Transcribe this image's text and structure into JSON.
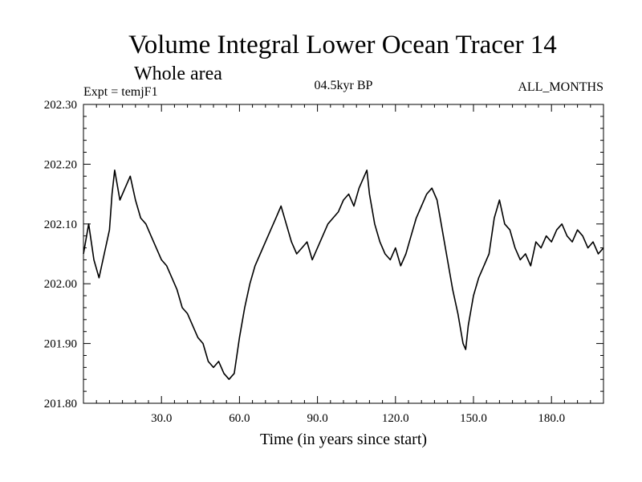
{
  "chart_data": {
    "type": "line",
    "title": "Volume Integral Lower Ocean Tracer 14",
    "subtitle": "Whole area",
    "experiment_label": "Expt = temjF1",
    "period_label": "04.5kyr BP",
    "months_label": "ALL_MONTHS",
    "xlabel": "Time (in years since start)",
    "ylabel": "",
    "xlim": [
      0,
      200
    ],
    "ylim": [
      201.8,
      202.3
    ],
    "x_ticks": [
      30,
      60,
      90,
      120,
      150,
      180
    ],
    "x_tick_labels": [
      "30.0",
      "60.0",
      "90.0",
      "120.0",
      "150.0",
      "180.0"
    ],
    "y_ticks": [
      201.8,
      201.9,
      202.0,
      202.1,
      202.2,
      202.3
    ],
    "y_tick_labels": [
      "201.80",
      "201.90",
      "202.00",
      "202.10",
      "202.20",
      "202.30"
    ],
    "grid": false,
    "line_color": "#000000",
    "series": [
      {
        "name": "Tracer 14",
        "x": [
          0,
          2,
          4,
          6,
          8,
          10,
          11,
          12,
          14,
          16,
          18,
          20,
          22,
          24,
          26,
          28,
          30,
          32,
          34,
          36,
          38,
          40,
          42,
          44,
          46,
          48,
          50,
          52,
          54,
          56,
          58,
          60,
          62,
          64,
          66,
          68,
          70,
          72,
          74,
          76,
          78,
          80,
          82,
          84,
          86,
          88,
          90,
          92,
          94,
          96,
          98,
          100,
          102,
          104,
          106,
          108,
          109,
          110,
          112,
          114,
          116,
          118,
          120,
          122,
          124,
          126,
          128,
          130,
          132,
          134,
          136,
          138,
          140,
          142,
          144,
          146,
          147,
          148,
          150,
          152,
          154,
          156,
          158,
          160,
          162,
          164,
          166,
          168,
          170,
          172,
          174,
          176,
          178,
          180,
          182,
          184,
          186,
          188,
          190,
          192,
          194,
          196,
          198,
          200
        ],
        "values": [
          202.05,
          202.1,
          202.04,
          202.01,
          202.05,
          202.09,
          202.15,
          202.19,
          202.14,
          202.16,
          202.18,
          202.14,
          202.11,
          202.1,
          202.08,
          202.06,
          202.04,
          202.03,
          202.01,
          201.99,
          201.96,
          201.95,
          201.93,
          201.91,
          201.9,
          201.87,
          201.86,
          201.87,
          201.85,
          201.84,
          201.85,
          201.91,
          201.96,
          202.0,
          202.03,
          202.05,
          202.07,
          202.09,
          202.11,
          202.13,
          202.1,
          202.07,
          202.05,
          202.06,
          202.07,
          202.04,
          202.06,
          202.08,
          202.1,
          202.11,
          202.12,
          202.14,
          202.15,
          202.13,
          202.16,
          202.18,
          202.19,
          202.15,
          202.1,
          202.07,
          202.05,
          202.04,
          202.06,
          202.03,
          202.05,
          202.08,
          202.11,
          202.13,
          202.15,
          202.16,
          202.14,
          202.09,
          202.04,
          201.99,
          201.95,
          201.9,
          201.89,
          201.93,
          201.98,
          202.01,
          202.03,
          202.05,
          202.11,
          202.14,
          202.1,
          202.09,
          202.06,
          202.04,
          202.05,
          202.03,
          202.07,
          202.06,
          202.08,
          202.07,
          202.09,
          202.1,
          202.08,
          202.07,
          202.09,
          202.08,
          202.06,
          202.07,
          202.05,
          202.06
        ]
      }
    ]
  }
}
